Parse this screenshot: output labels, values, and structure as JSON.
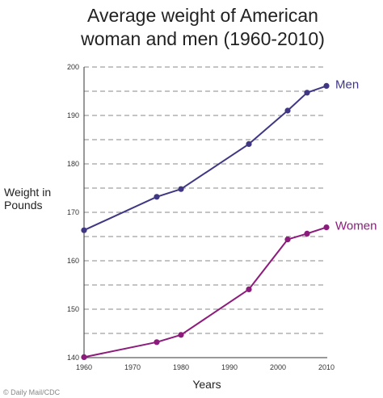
{
  "chart_data": {
    "type": "line",
    "title_lines": [
      "Average weight of American",
      "woman and men (1960-2010)"
    ],
    "xlabel": "Years",
    "ylabel_lines": [
      "Weight in",
      "Pounds"
    ],
    "xlim": [
      1960,
      2010
    ],
    "ylim": [
      140,
      200
    ],
    "x_ticks": [
      1960,
      1970,
      1980,
      1990,
      2000,
      2010
    ],
    "y_ticks": [
      140,
      150,
      160,
      170,
      180,
      190,
      200
    ],
    "grid": "horizontal dashed every 5 lb",
    "series": [
      {
        "name": "Men",
        "color": "#3f3783",
        "points": [
          {
            "x": 1960,
            "y": 166.3
          },
          {
            "x": 1975,
            "y": 173.2
          },
          {
            "x": 1980,
            "y": 174.8
          },
          {
            "x": 1994,
            "y": 184.1
          },
          {
            "x": 2002,
            "y": 191.0
          },
          {
            "x": 2006,
            "y": 194.7
          },
          {
            "x": 2010,
            "y": 196.1
          }
        ]
      },
      {
        "name": "Women",
        "color": "#8c1b7c",
        "points": [
          {
            "x": 1960,
            "y": 140.1
          },
          {
            "x": 1975,
            "y": 143.2
          },
          {
            "x": 1980,
            "y": 144.7
          },
          {
            "x": 1994,
            "y": 154.1
          },
          {
            "x": 2002,
            "y": 164.4
          },
          {
            "x": 2006,
            "y": 165.6
          },
          {
            "x": 2010,
            "y": 166.9
          }
        ]
      }
    ]
  },
  "credit": "© Daily Mail/CDC"
}
